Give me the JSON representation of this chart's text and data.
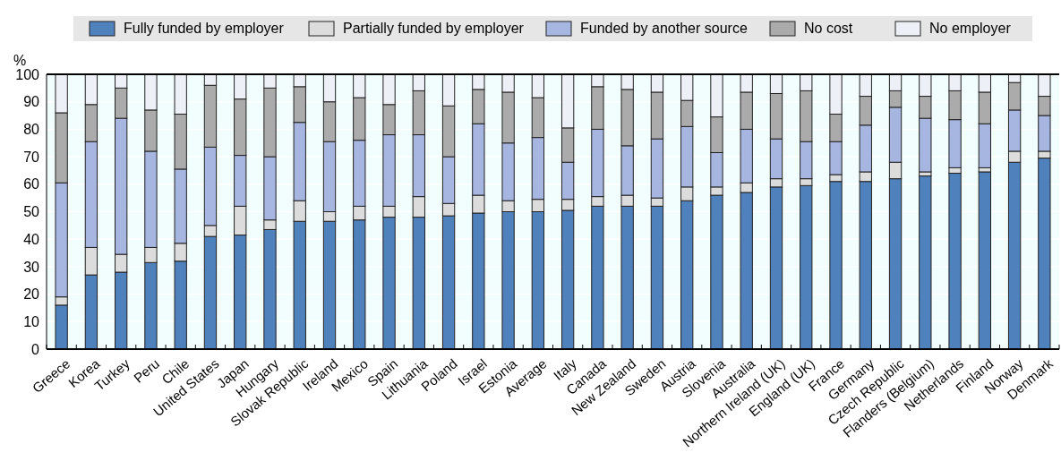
{
  "chart_data": {
    "type": "bar",
    "stacked": true,
    "ylabel": "%",
    "legend": "top",
    "grid": "y",
    "ylim": [
      0,
      100
    ],
    "yticks": [
      0,
      10,
      20,
      30,
      40,
      50,
      60,
      70,
      80,
      90,
      100
    ],
    "categories": [
      "Greece",
      "Korea",
      "Turkey",
      "Peru",
      "Chile",
      "United States",
      "Japan",
      "Hungary",
      "Slovak Republic",
      "Ireland",
      "Mexico",
      "Spain",
      "Lithuania",
      "Poland",
      "Israel",
      "Estonia",
      "Average",
      "Italy",
      "Canada",
      "New Zealand",
      "Sweden",
      "Austria",
      "Slovenia",
      "Australia",
      "Northern Ireland (UK)",
      "England (UK)",
      "France",
      "Germany",
      "Czech Republic",
      "Flanders (Belgium)",
      "Netherlands",
      "Finland",
      "Norway",
      "Denmark"
    ],
    "series": [
      {
        "name": "Fully funded by employer",
        "color": "#4f81bd",
        "values": [
          16,
          27,
          28,
          31.5,
          32,
          41,
          41.5,
          43.5,
          46.5,
          46.5,
          47,
          48,
          48,
          48.5,
          49.5,
          50,
          50,
          50.5,
          52,
          52,
          52,
          54,
          56,
          57,
          59,
          59.5,
          61,
          61,
          62,
          63,
          64,
          64.5,
          68,
          69.5
        ]
      },
      {
        "name": "Partially funded by employer",
        "color": "#dcdcdc",
        "values": [
          3,
          10,
          6.5,
          5.5,
          6.5,
          4,
          10.5,
          3.5,
          7.5,
          3.5,
          5,
          4,
          7.5,
          4.5,
          6.5,
          4,
          4.5,
          4,
          3.5,
          4,
          3,
          5,
          3,
          3.5,
          3,
          2.5,
          2.5,
          3.5,
          6,
          1.5,
          2,
          1.5,
          4,
          2.5
        ]
      },
      {
        "name": "Funded by another source",
        "color": "#a6b6e1",
        "values": [
          41.5,
          38.5,
          49.5,
          35,
          27,
          28.5,
          18.5,
          23,
          28.5,
          25.5,
          24,
          26,
          22.5,
          17,
          26,
          21,
          22.5,
          13.5,
          24.5,
          18,
          21.5,
          22,
          12.5,
          19.5,
          14.5,
          13.5,
          12,
          17,
          20,
          19.5,
          17.5,
          16,
          15,
          13
        ]
      },
      {
        "name": "No cost",
        "color": "#ababab",
        "values": [
          25.5,
          13.5,
          11,
          15,
          20,
          22.5,
          20.5,
          25,
          13,
          14.5,
          15.5,
          11,
          16,
          18.5,
          12.5,
          18.5,
          14.5,
          12.5,
          15.5,
          20.5,
          17,
          9.5,
          13,
          13.5,
          16.5,
          18.5,
          10,
          10.5,
          6,
          8,
          10.5,
          11.5,
          10,
          7
        ]
      },
      {
        "name": "No employer",
        "color": "#eef0f8",
        "values": [
          14,
          11,
          5,
          13,
          14.5,
          4,
          9,
          5,
          4.5,
          10,
          8.5,
          11,
          6,
          11.5,
          5.5,
          6.5,
          8.5,
          19.5,
          4.5,
          5.5,
          6.5,
          9.5,
          15.5,
          6.5,
          7,
          6,
          14.5,
          8,
          6,
          8,
          6,
          6.5,
          3,
          8
        ]
      }
    ]
  }
}
